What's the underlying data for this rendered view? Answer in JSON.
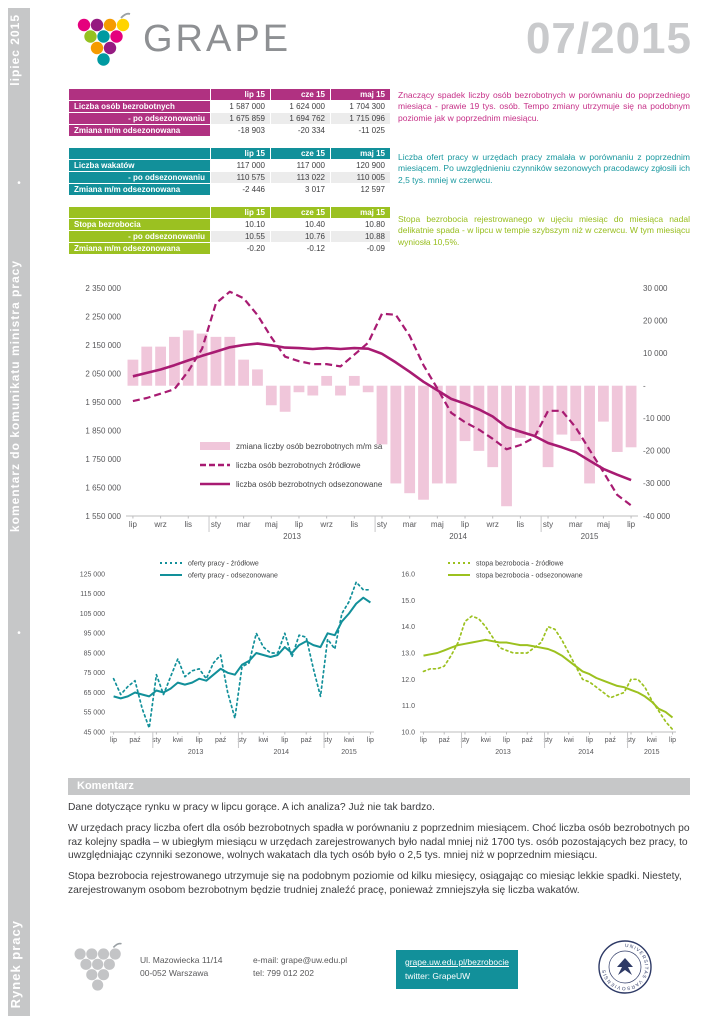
{
  "sidebar": {
    "top": "lipiec 2015",
    "middle": "komentarz do komunikatu ministra pracy",
    "bottom": "Rynek pracy",
    "separator": "•"
  },
  "header": {
    "brand": "GRAPE",
    "issue": "07/2015",
    "logo_colors": [
      "#e5007d",
      "#951b81",
      "#f59b00",
      "#ffd400",
      "#95c11f",
      "#009aa1",
      "#e5007d",
      "#f59b00",
      "#951b81",
      "#009aa1"
    ]
  },
  "tables": [
    {
      "accent": "#b03181",
      "comment_color": "#c62f87",
      "columns": [
        "lip 15",
        "cze 15",
        "maj 15"
      ],
      "rows": [
        {
          "label": "Liczba osób bezrobotnych",
          "align": "left",
          "values": [
            "1 587 000",
            "1 624 000",
            "1 704 300"
          ]
        },
        {
          "label": "- po odsezonowaniu",
          "align": "right",
          "values": [
            "1 675 859",
            "1 694 762",
            "1 715 096"
          ]
        },
        {
          "label": "Zmiana m/m odsezonowana",
          "align": "left",
          "values": [
            "-18 903",
            "-20 334",
            "-11 025"
          ]
        }
      ],
      "comment": "Znaczący spadek liczby osób bezrobotnych w porównaniu do poprzedniego miesiąca - prawie 19 tys. osób. Tempo zmiany utrzymuje się na podobnym poziomie jak w poprzednim miesiącu."
    },
    {
      "accent": "#12909a",
      "comment_color": "#18989f",
      "columns": [
        "lip 15",
        "cze 15",
        "maj 15"
      ],
      "rows": [
        {
          "label": "Liczba wakatów",
          "align": "left",
          "values": [
            "117 000",
            "117 000",
            "120 900"
          ]
        },
        {
          "label": "- po odsezonowaniu",
          "align": "right",
          "values": [
            "110 575",
            "113 022",
            "110 005"
          ]
        },
        {
          "label": "Zmiana m/m odsezonowana",
          "align": "left",
          "values": [
            "-2 446",
            "3 017",
            "12 597"
          ]
        }
      ],
      "comment": "Liczba ofert pracy w urzędach pracy zmalała w porównaniu z poprzednim miesiącem. Po uwzględnieniu czynników sezonowych pracodawcy zgłosili ich 2,5 tys. mniej w czerwcu."
    },
    {
      "accent": "#9bc121",
      "comment_color": "#98be1e",
      "columns": [
        "lip 15",
        "cze 15",
        "maj 15"
      ],
      "rows": [
        {
          "label": "Stopa bezrobocia",
          "align": "left",
          "values": [
            "10.10",
            "10.40",
            "10.80"
          ]
        },
        {
          "label": "- po odsezonowaniu",
          "align": "right",
          "values": [
            "10.55",
            "10.76",
            "10.88"
          ]
        },
        {
          "label": "Zmiana m/m odsezonowana",
          "align": "left",
          "values": [
            "-0.20",
            "-0.12",
            "-0.09"
          ]
        }
      ],
      "comment": "Stopa bezrobocia rejestrowanego w ujęciu miesiąc do miesiąca nadal delikatnie spada - w lipcu w tempie szybszym niż w czerwcu. W tym miesiącu wyniosła 10,5%."
    }
  ],
  "chart_data": [
    {
      "id": "unemployment-main",
      "type": "combo",
      "title": "",
      "xlabel": "",
      "ylabel": "",
      "x_tick_labels": [
        "lip",
        "wrz",
        "lis",
        "sty",
        "mar",
        "maj",
        "lip",
        "wrz",
        "lis",
        "sty",
        "mar",
        "maj",
        "lip",
        "wrz",
        "lis",
        "sty",
        "mar",
        "maj",
        "lip"
      ],
      "year_labels": [
        {
          "text": "2013",
          "index": 11.5
        },
        {
          "text": "2014",
          "index": 23.5
        },
        {
          "text": "2015",
          "index": 33
        }
      ],
      "year_separators": [
        6,
        18,
        30
      ],
      "left_axis": {
        "min": 1550000,
        "max": 2350000,
        "labels": [
          "2 350 000",
          "2 250 000",
          "2 150 000",
          "2 050 000",
          "1 950 000",
          "1 850 000",
          "1 750 000",
          "1 650 000",
          "1 550 000"
        ]
      },
      "right_axis": {
        "min": -40000,
        "max": 30000,
        "labels": [
          "30 000",
          "20 000",
          "10 000",
          "-",
          "-10 000",
          "-20 000",
          "-30 000",
          "-40 000"
        ]
      },
      "series": [
        {
          "name": "zmiana liczby osób bezrobotnych m/m sa",
          "kind": "bar",
          "axis": "right",
          "color": "#f0c6da",
          "values": [
            8000,
            12000,
            12000,
            15000,
            17000,
            16000,
            15000,
            15000,
            8000,
            5000,
            -6000,
            -8000,
            -2000,
            -3000,
            3000,
            -3000,
            3000,
            -2000,
            -18000,
            -30000,
            -33000,
            -35000,
            -30000,
            -30000,
            -17000,
            -20000,
            -25000,
            -37000,
            -16000,
            -15000,
            -25000,
            -15000,
            -17000,
            -30000,
            -11025,
            -20334,
            -18903
          ]
        },
        {
          "name": "liczba osób bezrobotnych źródłowe",
          "kind": "line-dashed",
          "axis": "left",
          "color": "#a81b72",
          "values": [
            1953000,
            1964000,
            1979000,
            1995000,
            2058000,
            2137000,
            2296000,
            2337000,
            2314000,
            2255000,
            2177000,
            2109000,
            2093000,
            2083000,
            2083000,
            2075000,
            2116000,
            2158000,
            2260000,
            2256000,
            2182000,
            2079000,
            1997000,
            1912000,
            1879000,
            1853000,
            1821000,
            1784000,
            1799000,
            1825000,
            1919000,
            1919000,
            1861000,
            1782000,
            1704300,
            1624000,
            1587000
          ]
        },
        {
          "name": "liczba osób bezrobotnych odsezonowane",
          "kind": "line",
          "axis": "left",
          "color": "#a81b72",
          "values": [
            2040000,
            2052000,
            2064000,
            2079000,
            2096000,
            2112000,
            2127000,
            2142000,
            2150000,
            2155000,
            2149000,
            2141000,
            2139000,
            2136000,
            2139000,
            2136000,
            2139000,
            2137000,
            2119000,
            2089000,
            2056000,
            2021000,
            1991000,
            1961000,
            1944000,
            1924000,
            1899000,
            1862000,
            1846000,
            1831000,
            1806000,
            1791000,
            1774000,
            1744000,
            1715096,
            1694762,
            1675859
          ]
        }
      ]
    },
    {
      "id": "job-offers",
      "type": "line",
      "title": "",
      "x_tick_labels": [
        "lip",
        "paź",
        "sty",
        "kwi",
        "lip",
        "paź",
        "sty",
        "kwi",
        "lip",
        "paź",
        "sty",
        "kwi",
        "lip"
      ],
      "year_labels": [
        {
          "text": "2013",
          "index": 11.5
        },
        {
          "text": "2014",
          "index": 23.5
        },
        {
          "text": "2015",
          "index": 33
        }
      ],
      "year_separators": [
        6,
        18,
        30
      ],
      "left_axis": {
        "min": 45000,
        "max": 125000,
        "labels": [
          "125 000",
          "115 000",
          "105 000",
          "95 000",
          "85 000",
          "75 000",
          "65 000",
          "55 000",
          "45 000"
        ]
      },
      "series": [
        {
          "name": "oferty pracy - źródłowe",
          "kind": "line-dotted",
          "axis": "left",
          "color": "#12909a",
          "values": [
            72000,
            64000,
            68000,
            71000,
            57000,
            47000,
            74000,
            64000,
            73000,
            82000,
            73000,
            76000,
            77000,
            72000,
            80000,
            84000,
            65000,
            52000,
            78000,
            80000,
            95000,
            88000,
            85000,
            85000,
            95000,
            83000,
            94000,
            93000,
            77000,
            63000,
            92000,
            87000,
            105000,
            111000,
            120900,
            117000,
            117000
          ]
        },
        {
          "name": "oferty pracy - odsezonowane",
          "kind": "line",
          "axis": "left",
          "color": "#12909a",
          "values": [
            63000,
            62000,
            63000,
            65000,
            64000,
            63000,
            66000,
            65000,
            67000,
            70000,
            69000,
            70000,
            72000,
            71000,
            74000,
            77000,
            75000,
            74000,
            79000,
            81000,
            85000,
            84000,
            83000,
            84000,
            88000,
            85000,
            89000,
            91000,
            89000,
            88000,
            95000,
            94000,
            101000,
            105000,
            110005,
            113022,
            110575
          ]
        }
      ]
    },
    {
      "id": "unemployment-rate",
      "type": "line",
      "title": "",
      "x_tick_labels": [
        "lip",
        "paź",
        "sty",
        "kwi",
        "lip",
        "paź",
        "sty",
        "kwi",
        "lip",
        "paź",
        "sty",
        "kwi",
        "lip"
      ],
      "year_labels": [
        {
          "text": "2013",
          "index": 11.5
        },
        {
          "text": "2014",
          "index": 23.5
        },
        {
          "text": "2015",
          "index": 33
        }
      ],
      "year_separators": [
        6,
        18,
        30
      ],
      "left_axis": {
        "min": 10,
        "max": 16,
        "labels": [
          "16.0",
          "15.0",
          "14.0",
          "13.0",
          "12.0",
          "11.0",
          "10.0"
        ]
      },
      "series": [
        {
          "name": "stopa bezrobocia - źródłowe",
          "kind": "line-dotted",
          "axis": "left",
          "color": "#9cc11f",
          "values": [
            12.3,
            12.4,
            12.4,
            12.5,
            12.9,
            13.4,
            14.2,
            14.4,
            14.3,
            14.0,
            13.6,
            13.2,
            13.1,
            13.0,
            13.0,
            13.0,
            13.2,
            13.4,
            14.0,
            13.9,
            13.5,
            13.0,
            12.5,
            12.0,
            11.9,
            11.7,
            11.5,
            11.3,
            11.4,
            11.5,
            12.0,
            12.0,
            11.7,
            11.2,
            10.8,
            10.4,
            10.1
          ]
        },
        {
          "name": "stopa bezrobocia - odsezonowane",
          "kind": "line",
          "axis": "left",
          "color": "#9cc11f",
          "values": [
            12.9,
            12.95,
            13.0,
            13.1,
            13.2,
            13.3,
            13.35,
            13.4,
            13.45,
            13.5,
            13.45,
            13.4,
            13.4,
            13.35,
            13.3,
            13.3,
            13.25,
            13.2,
            13.15,
            13.05,
            12.9,
            12.7,
            12.5,
            12.3,
            12.2,
            12.05,
            11.95,
            11.85,
            11.75,
            11.7,
            11.6,
            11.5,
            11.35,
            11.15,
            10.88,
            10.76,
            10.55
          ]
        }
      ]
    }
  ],
  "komentarz": {
    "title": "Komentarz",
    "paragraphs": [
      "Dane dotyczące rynku w pracy w lipcu gorące. A ich analiza? Już nie tak bardzo.",
      "W urzędach pracy liczba ofert dla osób bezrobotnych spadła w porównaniu z poprzednim miesiącem. Choć liczba osób bezrobotnych po raz kolejny spadła – w ubiegłym miesiącu w urzędach zarejestrowanych było nadal mniej niż 1700 tys. osób pozostających bez pracy, to uwzględniając czynniki sezonowe, wolnych wakatach dla tych osób było o 2,5 tys. mniej niż w poprzednim miesiącu.",
      "Stopa bezrobocia rejestrowanego utrzymuje się na podobnym poziomie od kilku miesięcy, osiągając co miesiąc lekkie spadki. Niestety, zarejestrowanym osobom bezrobotnym będzie trudniej znaleźć pracę, ponieważ zmniejszyła się liczba wakatów."
    ]
  },
  "footer": {
    "address_line1": "Ul. Mazowiecka 11/14",
    "address_line2": "00-052 Warszawa",
    "email": "e-mail: grape@uw.edu.pl",
    "phone": "tel: 799 012 202",
    "url": "grape.uw.edu.pl/bezrobocie",
    "twitter": "twitter: GrapeUW",
    "seal_text": "UNIVERSITAS  VARSOVIENSIS",
    "logo_color": "#c3c4c6"
  }
}
